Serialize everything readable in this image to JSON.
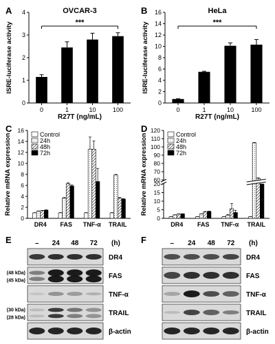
{
  "panels": {
    "A": {
      "letter": "A",
      "title": "OVCAR-3",
      "xlabel": "R27T (ng/mL)",
      "ylabel": "ISRE-luciferase activity",
      "significance": "***",
      "ylim": [
        0,
        4
      ],
      "yticks": [
        "0",
        "1",
        "2",
        "3",
        "4"
      ]
    },
    "B": {
      "letter": "B",
      "title": "HeLa",
      "xlabel": "R27T (ng/mL)",
      "ylabel": "ISRE-luciferase activity",
      "significance": "***",
      "ylim": [
        0,
        16
      ],
      "yticks": [
        "0",
        "2",
        "4",
        "6",
        "8",
        "10",
        "12",
        "14",
        "16"
      ]
    },
    "C": {
      "letter": "C",
      "ylabel": "Relative mRNA expression",
      "ylim": [
        0,
        16
      ],
      "yticks": [
        "0",
        "2",
        "4",
        "6",
        "8",
        "10",
        "12",
        "14",
        "16"
      ]
    },
    "D": {
      "letter": "D",
      "ylabel": "Relative mRNA expression",
      "yticks_lower": [
        "0",
        "5",
        "10",
        "15",
        "20"
      ],
      "yticks_upper": [
        "60",
        "70",
        "80",
        "90",
        "100",
        "110",
        "120"
      ]
    },
    "E": {
      "letter": "E"
    },
    "F": {
      "letter": "F"
    }
  },
  "chart_data": [
    {
      "type": "bar",
      "panel": "A",
      "title": "OVCAR-3",
      "xlabel": "R27T (ng/mL)",
      "ylabel": "ISRE-luciferase activity",
      "categories": [
        "0",
        "1",
        "10",
        "100"
      ],
      "values": [
        1.15,
        2.45,
        2.8,
        2.95
      ],
      "errors": [
        0.1,
        0.25,
        0.28,
        0.15
      ],
      "ylim": [
        0,
        4
      ],
      "annotation": "***",
      "color": "#000000"
    },
    {
      "type": "bar",
      "panel": "B",
      "title": "HeLa",
      "xlabel": "R27T (ng/mL)",
      "ylabel": "ISRE-luciferase activity",
      "categories": [
        "0",
        "1",
        "10",
        "100"
      ],
      "values": [
        0.7,
        5.5,
        10.1,
        10.3
      ],
      "errors": [
        0.05,
        0.1,
        0.5,
        0.9
      ],
      "ylim": [
        0,
        16
      ],
      "annotation": "***",
      "color": "#000000"
    },
    {
      "type": "bar",
      "panel": "C",
      "ylabel": "Relative mRNA expression",
      "categories": [
        "DR4",
        "FAS",
        "TNF-α",
        "TRAIL"
      ],
      "series": [
        {
          "name": "Control",
          "values": [
            1.0,
            1.0,
            1.0,
            1.0
          ],
          "errors": [
            0.05,
            0.05,
            0.05,
            0.05
          ]
        },
        {
          "name": "24h",
          "values": [
            1.3,
            3.7,
            12.6,
            7.9
          ],
          "errors": [
            0.05,
            0.1,
            2.2,
            0.1
          ]
        },
        {
          "name": "48h",
          "values": [
            1.4,
            6.3,
            12.6,
            3.7
          ],
          "errors": [
            0.05,
            0.2,
            1.5,
            0.1
          ]
        },
        {
          "name": "72h",
          "values": [
            1.5,
            5.9,
            6.7,
            3.5
          ],
          "errors": [
            0.05,
            0.2,
            2.4,
            0.1
          ]
        }
      ],
      "ylim": [
        0,
        16
      ]
    },
    {
      "type": "bar",
      "panel": "D",
      "ylabel": "Relative mRNA expression",
      "categories": [
        "DR4",
        "FAS",
        "TNF-α",
        "TRAIL"
      ],
      "series": [
        {
          "name": "Control",
          "values": [
            1.0,
            1.0,
            1.0,
            1.0
          ],
          "errors": [
            0.05,
            0.05,
            0.05,
            0.05
          ]
        },
        {
          "name": "24h",
          "values": [
            2.0,
            2.6,
            1.8,
            105.0
          ],
          "errors": [
            0.1,
            0.1,
            0.5,
            0.5
          ]
        },
        {
          "name": "48h",
          "values": [
            2.5,
            3.8,
            5.6,
            62.0
          ],
          "errors": [
            0.1,
            0.2,
            3.0,
            0.5
          ]
        },
        {
          "name": "72h",
          "values": [
            2.6,
            4.0,
            3.4,
            41.0
          ],
          "errors": [
            0.1,
            0.2,
            1.3,
            0.5
          ]
        }
      ],
      "axis_break": [
        20,
        60
      ],
      "ylim": [
        0,
        120
      ]
    }
  ],
  "blots": {
    "E": {
      "columns": [
        "–",
        "24",
        "48",
        "72"
      ],
      "unit": "(h)",
      "rows": [
        {
          "label": "DR4",
          "markers": []
        },
        {
          "label": "FAS",
          "markers": [
            "(48 kDa)",
            "(45 kDa)"
          ]
        },
        {
          "label": "TNF-α",
          "markers": []
        },
        {
          "label": "TRAIL",
          "markers": [
            "(30 kDa)",
            "(28 kDa)"
          ]
        },
        {
          "label": "β-actin",
          "markers": []
        }
      ]
    },
    "F": {
      "columns": [
        "–",
        "24",
        "48",
        "72"
      ],
      "unit": "(h)",
      "rows": [
        {
          "label": "DR4",
          "markers": []
        },
        {
          "label": "FAS",
          "markers": []
        },
        {
          "label": "TNF-α",
          "markers": []
        },
        {
          "label": "TRAIL",
          "markers": []
        },
        {
          "label": "β-actin",
          "markers": []
        }
      ]
    }
  }
}
